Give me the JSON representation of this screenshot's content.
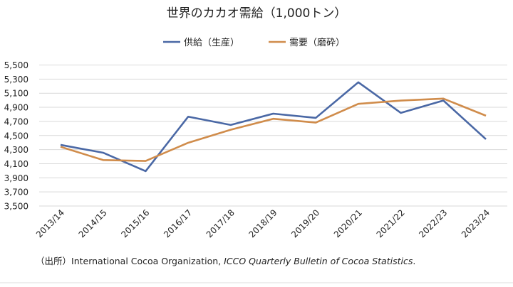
{
  "chart_data": {
    "type": "line",
    "title": "世界のカカオ需給（1,000トン）",
    "xlabel": "",
    "ylabel": "",
    "categories": [
      "2013/14",
      "2014/15",
      "2015/16",
      "2016/17",
      "2017/18",
      "2018/19",
      "2019/20",
      "2020/21",
      "2021/22",
      "2022/23",
      "2023/24"
    ],
    "series": [
      {
        "name": "供給（生産）",
        "color": "#4a68a5",
        "values": [
          4367,
          4256,
          3994,
          4767,
          4650,
          4810,
          4750,
          5255,
          4821,
          4996,
          4448
        ]
      },
      {
        "name": "需要（磨砕）",
        "color": "#d08c4b",
        "values": [
          4340,
          4152,
          4139,
          4397,
          4582,
          4737,
          4683,
          4949,
          4996,
          5023,
          4781
        ]
      }
    ],
    "ylim": [
      3500,
      5500
    ],
    "yticks": [
      3500,
      3700,
      3900,
      4100,
      4300,
      4500,
      4700,
      4900,
      5100,
      5300,
      5500
    ],
    "ytick_labels": [
      "3,500",
      "3,700",
      "3,900",
      "4,100",
      "4,300",
      "4,500",
      "4,700",
      "4,900",
      "5,100",
      "5,300",
      "5,500"
    ],
    "grid": true,
    "legend": "top"
  },
  "source": {
    "prefix": "（出所）",
    "org": "International Cocoa Organization, ",
    "publication": "ICCO Quarterly Bulletin of Cocoa Statistics",
    "suffix": "."
  }
}
